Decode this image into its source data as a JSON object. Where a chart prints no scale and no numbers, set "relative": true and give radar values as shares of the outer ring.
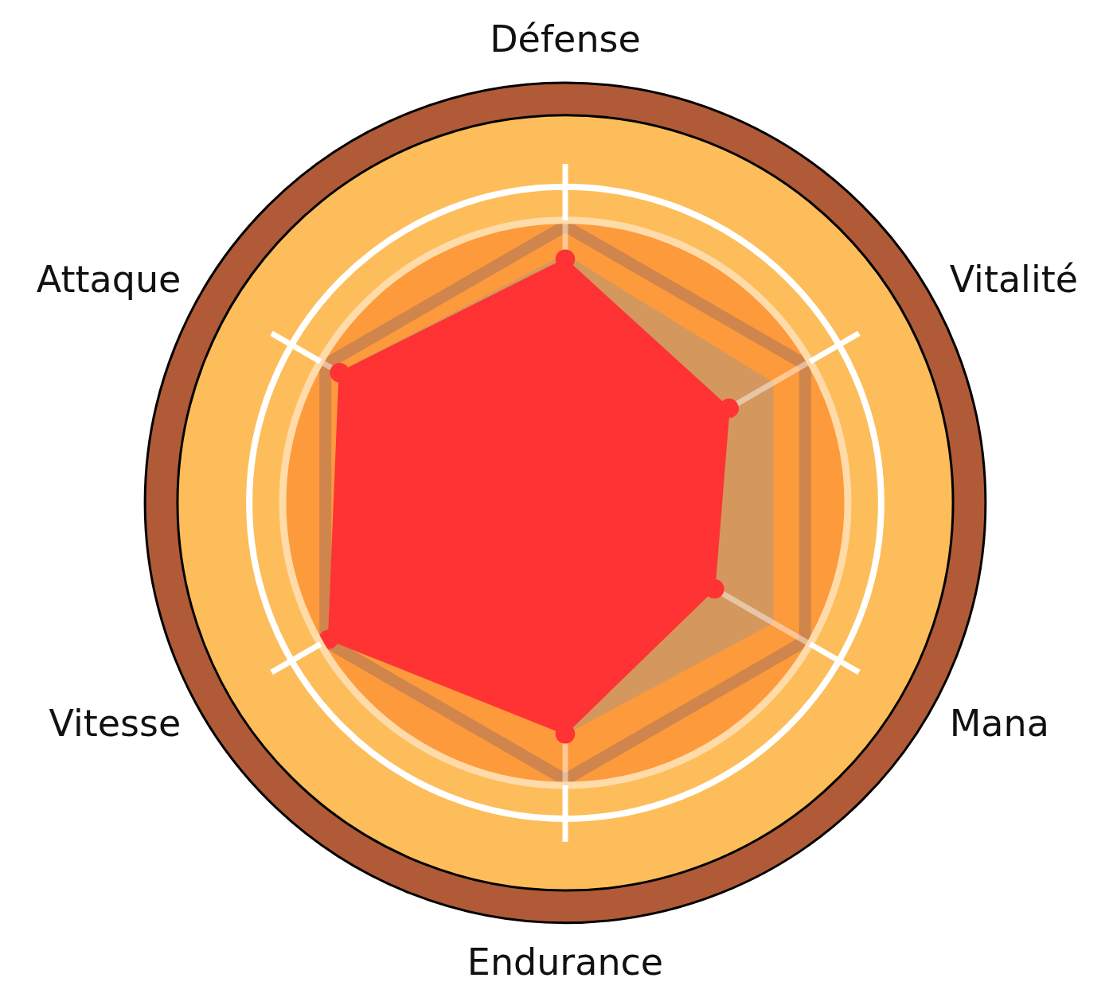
{
  "chart_data": {
    "type": "radar",
    "relative": true,
    "grid": true,
    "marker": "circle",
    "legend": false,
    "categories": [
      "Défense",
      "Vitalité",
      "Mana",
      "Endurance",
      "Vitesse",
      "Attaque"
    ],
    "series": [
      {
        "marker": "none",
        "color": "#d4985f",
        "values": [
          0.59,
          0.57,
          0.57,
          0.55,
          0.65,
          0.62
        ]
      },
      {
        "color": "#ff3333",
        "values": [
          0.58,
          0.45,
          0.41,
          0.55,
          0.65,
          0.62
        ]
      }
    ]
  }
}
